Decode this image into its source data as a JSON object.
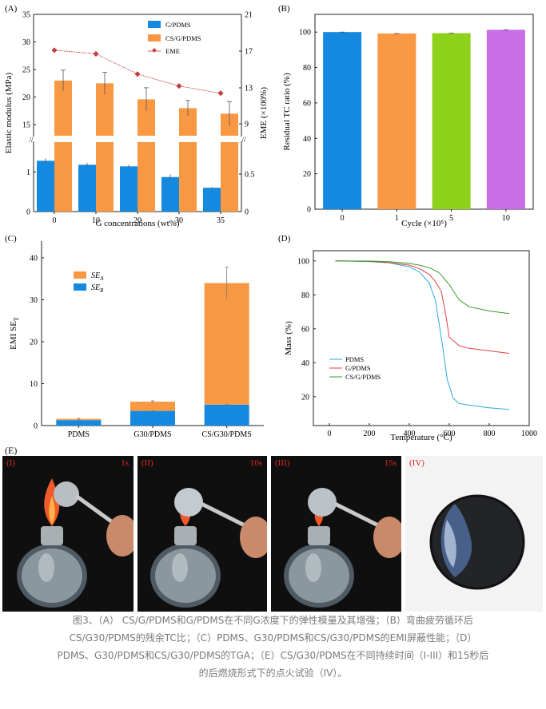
{
  "panelA": {
    "label": "(A)",
    "xlabel": "G concentrations (wt%)",
    "ylabel_left": "Elastic modulus (MPa)",
    "ylabel_right": "EME (×100%)",
    "legend": [
      "G/PDMS",
      "CS/G/PDMS",
      "EME"
    ],
    "colors": {
      "blue": "#1589e0",
      "orange": "#f99843",
      "red": "#c43b3b"
    }
  },
  "panelB": {
    "label": "(B)",
    "xlabel": "Cycle (×10⁵)",
    "ylabel": "Residual TC ratio (%)"
  },
  "panelC": {
    "label": "(C)",
    "ylabel": "EMI SE_T",
    "legend": [
      "SE_A",
      "SE_R"
    ]
  },
  "panelD": {
    "label": "(D)",
    "xlabel": "Temperature (°C)",
    "ylabel": "Mass (%)",
    "legend": [
      "PDMS",
      "G/PDMS",
      "CS/G/PDMS"
    ]
  },
  "panelE": {
    "label": "(E)",
    "photos": [
      {
        "label": "(I)",
        "time": "1s"
      },
      {
        "label": "(II)",
        "time": "10s"
      },
      {
        "label": "(III)",
        "time": "15s"
      },
      {
        "label": "(IV)",
        "time": ""
      }
    ]
  },
  "caption": [
    "图3、（A） CS/G/PDMS和G/PDMS在不同G浓度下的弹性模量及其增强；（B）弯曲疲劳循环后",
    "CS/G30/PDMS的残余TC比；（C）PDMS、G30/PDMS和CS/G30/PDMS的EMI屏蔽性能；（D）",
    "PDMS、G30/PDMS和CS/G30/PDMS的TGA；（E）CS/G30/PDMS在不同持续时间（I-III）和15秒后",
    "的后燃烧形式下的点火试验（IV）。"
  ],
  "chart_data": [
    {
      "type": "bar",
      "categories": [
        "0",
        "10",
        "20",
        "30",
        "35"
      ],
      "series": [
        {
          "name": "G/PDMS",
          "values": [
            1.28,
            1.18,
            1.14,
            0.87,
            0.6
          ],
          "errors": [
            0.06,
            0.05,
            0.04,
            0.07,
            0.02
          ]
        },
        {
          "name": "CS/G/PDMS",
          "values": [
            23.0,
            22.5,
            19.6,
            18.0,
            17.0
          ],
          "errors": [
            1.9,
            2.0,
            2.1,
            1.4,
            2.2
          ]
        },
        {
          "name": "EME",
          "values": [
            17.1,
            16.7,
            14.5,
            13.2,
            12.4
          ],
          "axis": "right"
        }
      ],
      "xlabel": "G concentrations (wt%)",
      "ylabel": "Elastic modulus (MPa)",
      "ylabel_right": "EME (×100%)",
      "ylim_lower": [
        0,
        1.75
      ],
      "ylim_upper": [
        13,
        35
      ],
      "ylim_right": [
        0,
        21
      ],
      "yticks_lower": [
        0,
        1
      ],
      "yticks_upper": [
        15,
        20,
        25,
        30,
        35
      ],
      "yticks_right": [
        0,
        0.5,
        9,
        13,
        17,
        21
      ],
      "axis_break": true
    },
    {
      "type": "bar",
      "categories": [
        "0",
        "1",
        "5",
        "10"
      ],
      "values": [
        100,
        99.2,
        99.4,
        101.3
      ],
      "colors": [
        "#1589e0",
        "#f99843",
        "#8ed11a",
        "#c76ee6"
      ],
      "xlabel": "Cycle (×10⁵)",
      "ylabel": "Residual TC ratio (%)",
      "ylim": [
        0,
        110
      ],
      "yticks": [
        0,
        20,
        40,
        60,
        80,
        100
      ]
    },
    {
      "type": "bar",
      "stacked": true,
      "categories": [
        "PDMS",
        "G30/PDMS",
        "CS/G30/PDMS"
      ],
      "series": [
        {
          "name": "SE_R",
          "values": [
            1.3,
            3.5,
            5.0
          ],
          "errors": [
            0.2,
            0.2,
            0.2
          ]
        },
        {
          "name": "SE_A",
          "values": [
            0.3,
            2.2,
            29.0
          ],
          "errors": [
            0.1,
            0.2,
            3.8
          ]
        }
      ],
      "ylabel": "EMI SE_T",
      "ylim": [
        0,
        44
      ],
      "yticks": [
        0,
        10,
        20,
        30,
        40
      ]
    },
    {
      "type": "line",
      "series": [
        {
          "name": "PDMS",
          "color": "#29a8e0",
          "x": [
            30,
            200,
            300,
            400,
            450,
            500,
            530,
            560,
            590,
            620,
            650,
            700,
            800,
            900
          ],
          "y": [
            100,
            99.6,
            98.8,
            96.5,
            93.5,
            87,
            77,
            55,
            30,
            19,
            16,
            15,
            13.5,
            12.5
          ]
        },
        {
          "name": "G/PDMS",
          "color": "#e04040",
          "x": [
            30,
            200,
            300,
            400,
            450,
            500,
            530,
            560,
            580,
            600,
            650,
            700,
            800,
            900
          ],
          "y": [
            100,
            99.8,
            99,
            97.5,
            95.5,
            92,
            88,
            82,
            70,
            55,
            50,
            48.5,
            47,
            45.5
          ]
        },
        {
          "name": "CS/G/PDMS",
          "color": "#3a9a2a",
          "x": [
            30,
            200,
            300,
            400,
            450,
            500,
            550,
            600,
            650,
            700,
            800,
            900
          ],
          "y": [
            100,
            99.9,
            99.5,
            98.5,
            97.5,
            96,
            93,
            86,
            77,
            73,
            70.5,
            69
          ]
        }
      ],
      "xlabel": "Temperature (°C)",
      "ylabel": "Mass (%)",
      "xlim": [
        -80,
        1000
      ],
      "ylim": [
        3,
        106
      ],
      "xticks": [
        0,
        200,
        400,
        600,
        800,
        1000
      ],
      "yticks": [
        20,
        40,
        60,
        80,
        100
      ]
    }
  ]
}
